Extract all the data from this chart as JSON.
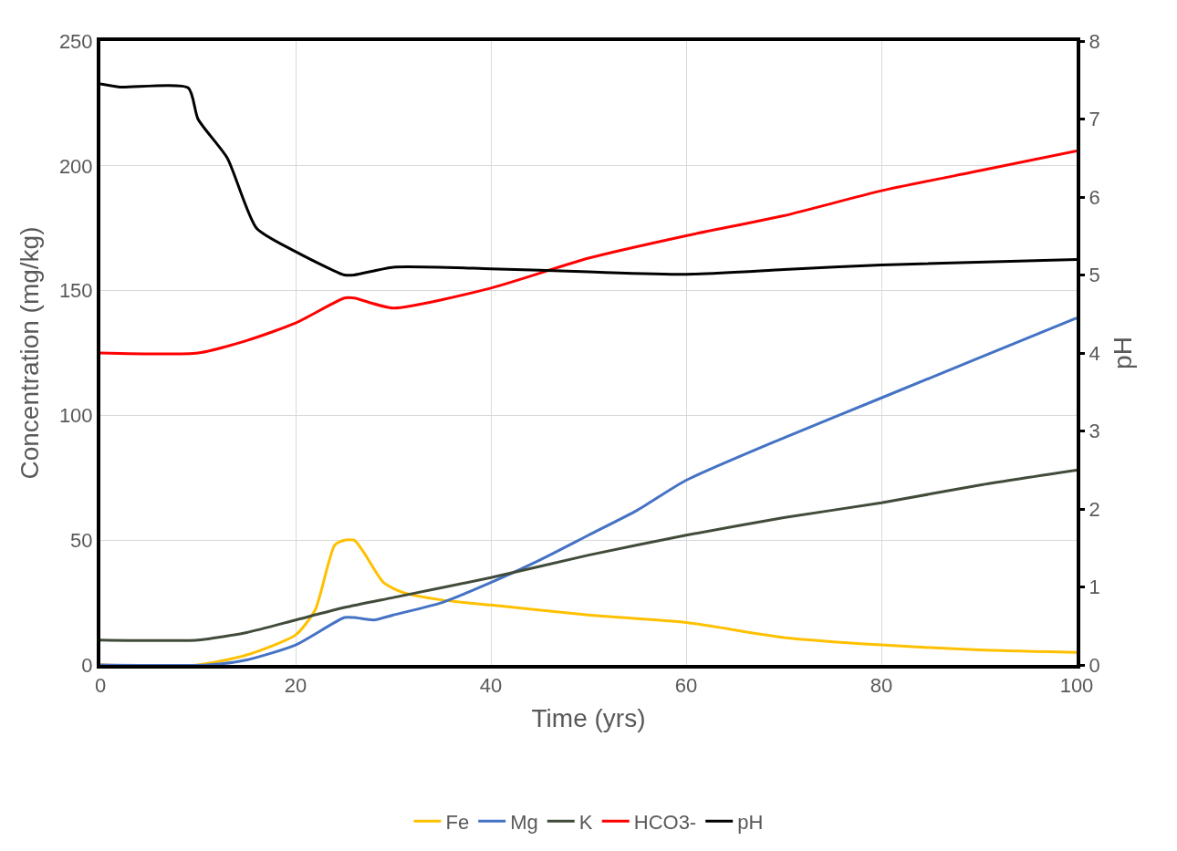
{
  "chart_data": {
    "type": "line",
    "xlabel": "Time (yrs)",
    "ylabel": "Concentration (mg/kg)",
    "y2label": "pH",
    "xlim": [
      0,
      100
    ],
    "xticks": [
      0,
      20,
      40,
      60,
      80,
      100
    ],
    "ylim": [
      0,
      250
    ],
    "yticks": [
      0,
      50,
      100,
      150,
      200,
      250
    ],
    "y2lim": [
      0,
      8
    ],
    "y2ticks": [
      0,
      1,
      2,
      3,
      4,
      5,
      6,
      7,
      8
    ],
    "grid": true,
    "legend": "bottom",
    "marker": "none",
    "line_style": "solid",
    "series": [
      {
        "name": "Fe",
        "color": "#ffc000",
        "x": [
          0,
          10,
          15,
          20,
          22,
          24,
          25,
          26,
          27,
          29,
          31,
          35,
          40,
          50,
          60,
          70,
          80,
          90,
          100
        ],
        "values": [
          0,
          0,
          4,
          12,
          22,
          48,
          50,
          50,
          45,
          33,
          29,
          26,
          24,
          20,
          17,
          11,
          8,
          6,
          5
        ]
      },
      {
        "name": "Mg",
        "color": "#4472c4",
        "x": [
          0,
          11,
          15,
          20,
          25,
          26,
          28,
          30,
          35,
          40,
          45,
          50,
          55,
          60,
          70,
          80,
          90,
          100
        ],
        "values": [
          0,
          0,
          2,
          8,
          19,
          19,
          18,
          20,
          25,
          33,
          42,
          52,
          62,
          74,
          91,
          107,
          123,
          139
        ]
      },
      {
        "name": "K",
        "color": "#404b3a",
        "x": [
          0,
          10,
          15,
          20,
          25,
          30,
          40,
          50,
          60,
          70,
          80,
          90,
          100
        ],
        "values": [
          10,
          10,
          13,
          18,
          23,
          27,
          35,
          44,
          52,
          59,
          65,
          72,
          78
        ]
      },
      {
        "name": "HCO3-",
        "color": "#ff0000",
        "x": [
          0,
          10,
          15,
          20,
          25,
          26,
          30,
          40,
          50,
          60,
          70,
          80,
          90,
          100
        ],
        "values": [
          125,
          125,
          130,
          137,
          147,
          147,
          143,
          151,
          163,
          172,
          180,
          190,
          198,
          206
        ]
      },
      {
        "name": "pH",
        "color": "#000000",
        "axis": "y2",
        "x": [
          0,
          2,
          9,
          10,
          13,
          16,
          20,
          25,
          26,
          30,
          40,
          50,
          60,
          70,
          80,
          100
        ],
        "values": [
          7.45,
          7.41,
          7.4,
          7.0,
          6.5,
          5.6,
          5.3,
          5.0,
          5.0,
          5.1,
          5.08,
          5.04,
          5.01,
          5.07,
          5.13,
          5.2
        ]
      }
    ]
  }
}
